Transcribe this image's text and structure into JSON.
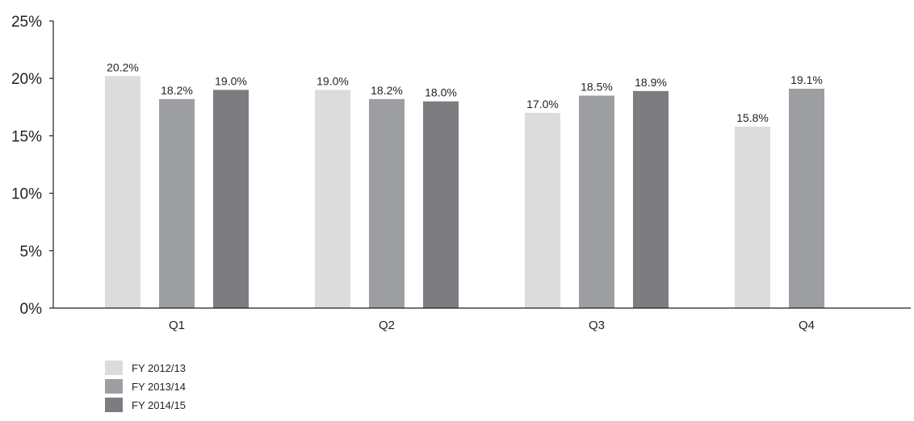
{
  "chart_data": {
    "type": "bar",
    "categories": [
      "Q1",
      "Q2",
      "Q3",
      "Q4"
    ],
    "series": [
      {
        "name": "FY 2012/13",
        "color": "#dcdcdd",
        "values": [
          20.2,
          19.0,
          17.0,
          15.8
        ]
      },
      {
        "name": "FY 2013/14",
        "color": "#9d9ea1",
        "values": [
          18.2,
          18.2,
          18.5,
          19.1
        ]
      },
      {
        "name": "FY 2014/15",
        "color": "#7d7c80",
        "values": [
          19.0,
          18.0,
          18.9,
          null
        ]
      }
    ],
    "data_labels": [
      [
        "20.2%",
        "19.0%",
        "17.0%",
        "15.8%"
      ],
      [
        "18.2%",
        "18.2%",
        "18.5%",
        "19.1%"
      ],
      [
        "19.0%",
        "18.0%",
        "18.9%",
        null
      ]
    ],
    "ylim": [
      0,
      25
    ],
    "yticks": [
      0,
      5,
      10,
      15,
      20,
      25
    ],
    "ytick_labels": [
      "0%",
      "5%",
      "10%",
      "15%",
      "20%",
      "25%"
    ],
    "title": "",
    "xlabel": "",
    "ylabel": "",
    "grid": false,
    "legend_position": "bottom-left"
  }
}
